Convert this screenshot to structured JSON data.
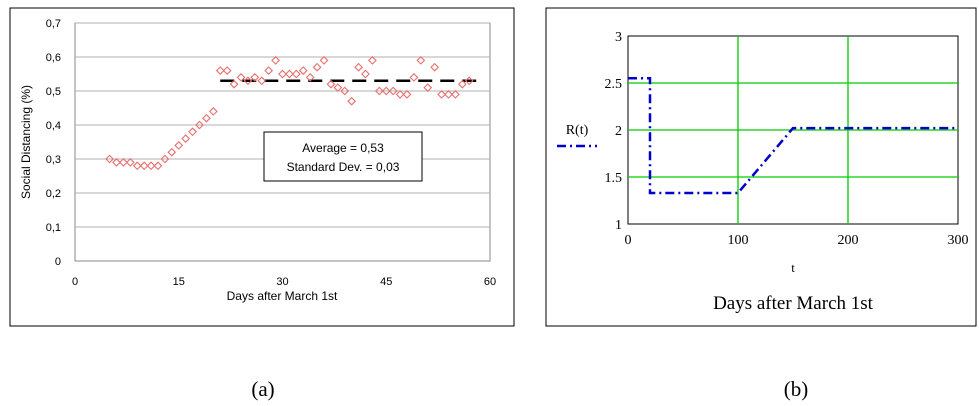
{
  "panel_a": {
    "xlabel": "Days after March 1st",
    "ylabel": "Social Distancing (%)",
    "caption": "(a)",
    "annotation": [
      "Average = 0,53",
      "Standard Dev. = 0,03"
    ],
    "x_ticks": [
      "0",
      "15",
      "30",
      "45",
      "60"
    ],
    "y_ticks": [
      "0",
      "0,1",
      "0,2",
      "0,3",
      "0,4",
      "0,5",
      "0,6",
      "0,7"
    ]
  },
  "panel_b": {
    "legend_label": "R(t)",
    "x_axis_label": "t",
    "caption_label": "Days after March 1st",
    "caption": "(b)",
    "x_ticks": [
      "0",
      "100",
      "200",
      "300"
    ],
    "y_ticks": [
      "1",
      "1.5",
      "2",
      "2.5",
      "3"
    ]
  },
  "chart_data": [
    {
      "type": "scatter",
      "title": "",
      "xlabel": "Days after March 1st",
      "ylabel": "Social Distancing (%)",
      "xlim": [
        0,
        60
      ],
      "ylim": [
        0,
        0.7
      ],
      "grid": true,
      "marker_color": "#e8706f",
      "series": [
        {
          "x": [
            5,
            6,
            7,
            8,
            9,
            10,
            11,
            12,
            13,
            14,
            15,
            16,
            17,
            18,
            19,
            20,
            21,
            22,
            23,
            24,
            25,
            26,
            27,
            28,
            29,
            30,
            31,
            32,
            33,
            34,
            35,
            36,
            37,
            38,
            39,
            40,
            41,
            42,
            43,
            44,
            45,
            46,
            47,
            48,
            49,
            50,
            51,
            52,
            53,
            54,
            55,
            56,
            57
          ],
          "y": [
            0.3,
            0.29,
            0.29,
            0.29,
            0.28,
            0.28,
            0.28,
            0.28,
            0.3,
            0.32,
            0.34,
            0.36,
            0.38,
            0.4,
            0.42,
            0.44,
            0.56,
            0.56,
            0.52,
            0.54,
            0.53,
            0.54,
            0.53,
            0.56,
            0.59,
            0.55,
            0.55,
            0.55,
            0.56,
            0.54,
            0.57,
            0.59,
            0.52,
            0.51,
            0.5,
            0.47,
            0.57,
            0.55,
            0.59,
            0.5,
            0.5,
            0.5,
            0.49,
            0.49,
            0.54,
            0.59,
            0.51,
            0.57,
            0.49,
            0.49,
            0.49,
            0.52,
            0.53
          ]
        }
      ],
      "average_line": {
        "value": 0.53,
        "x_range": [
          21,
          58
        ],
        "style": "dashed",
        "color": "#000000"
      }
    },
    {
      "type": "line",
      "title": "",
      "xlabel": "t",
      "ylabel": "",
      "xlim": [
        0,
        300
      ],
      "ylim": [
        1,
        3
      ],
      "grid": true,
      "grid_color": "#00cc00",
      "series": [
        {
          "name": "R(t)",
          "color": "#0000cc",
          "style": "dash-dot",
          "x": [
            0,
            20,
            20,
            100,
            150,
            300
          ],
          "y": [
            2.55,
            2.55,
            1.33,
            1.33,
            2.02,
            2.02
          ]
        }
      ]
    }
  ]
}
